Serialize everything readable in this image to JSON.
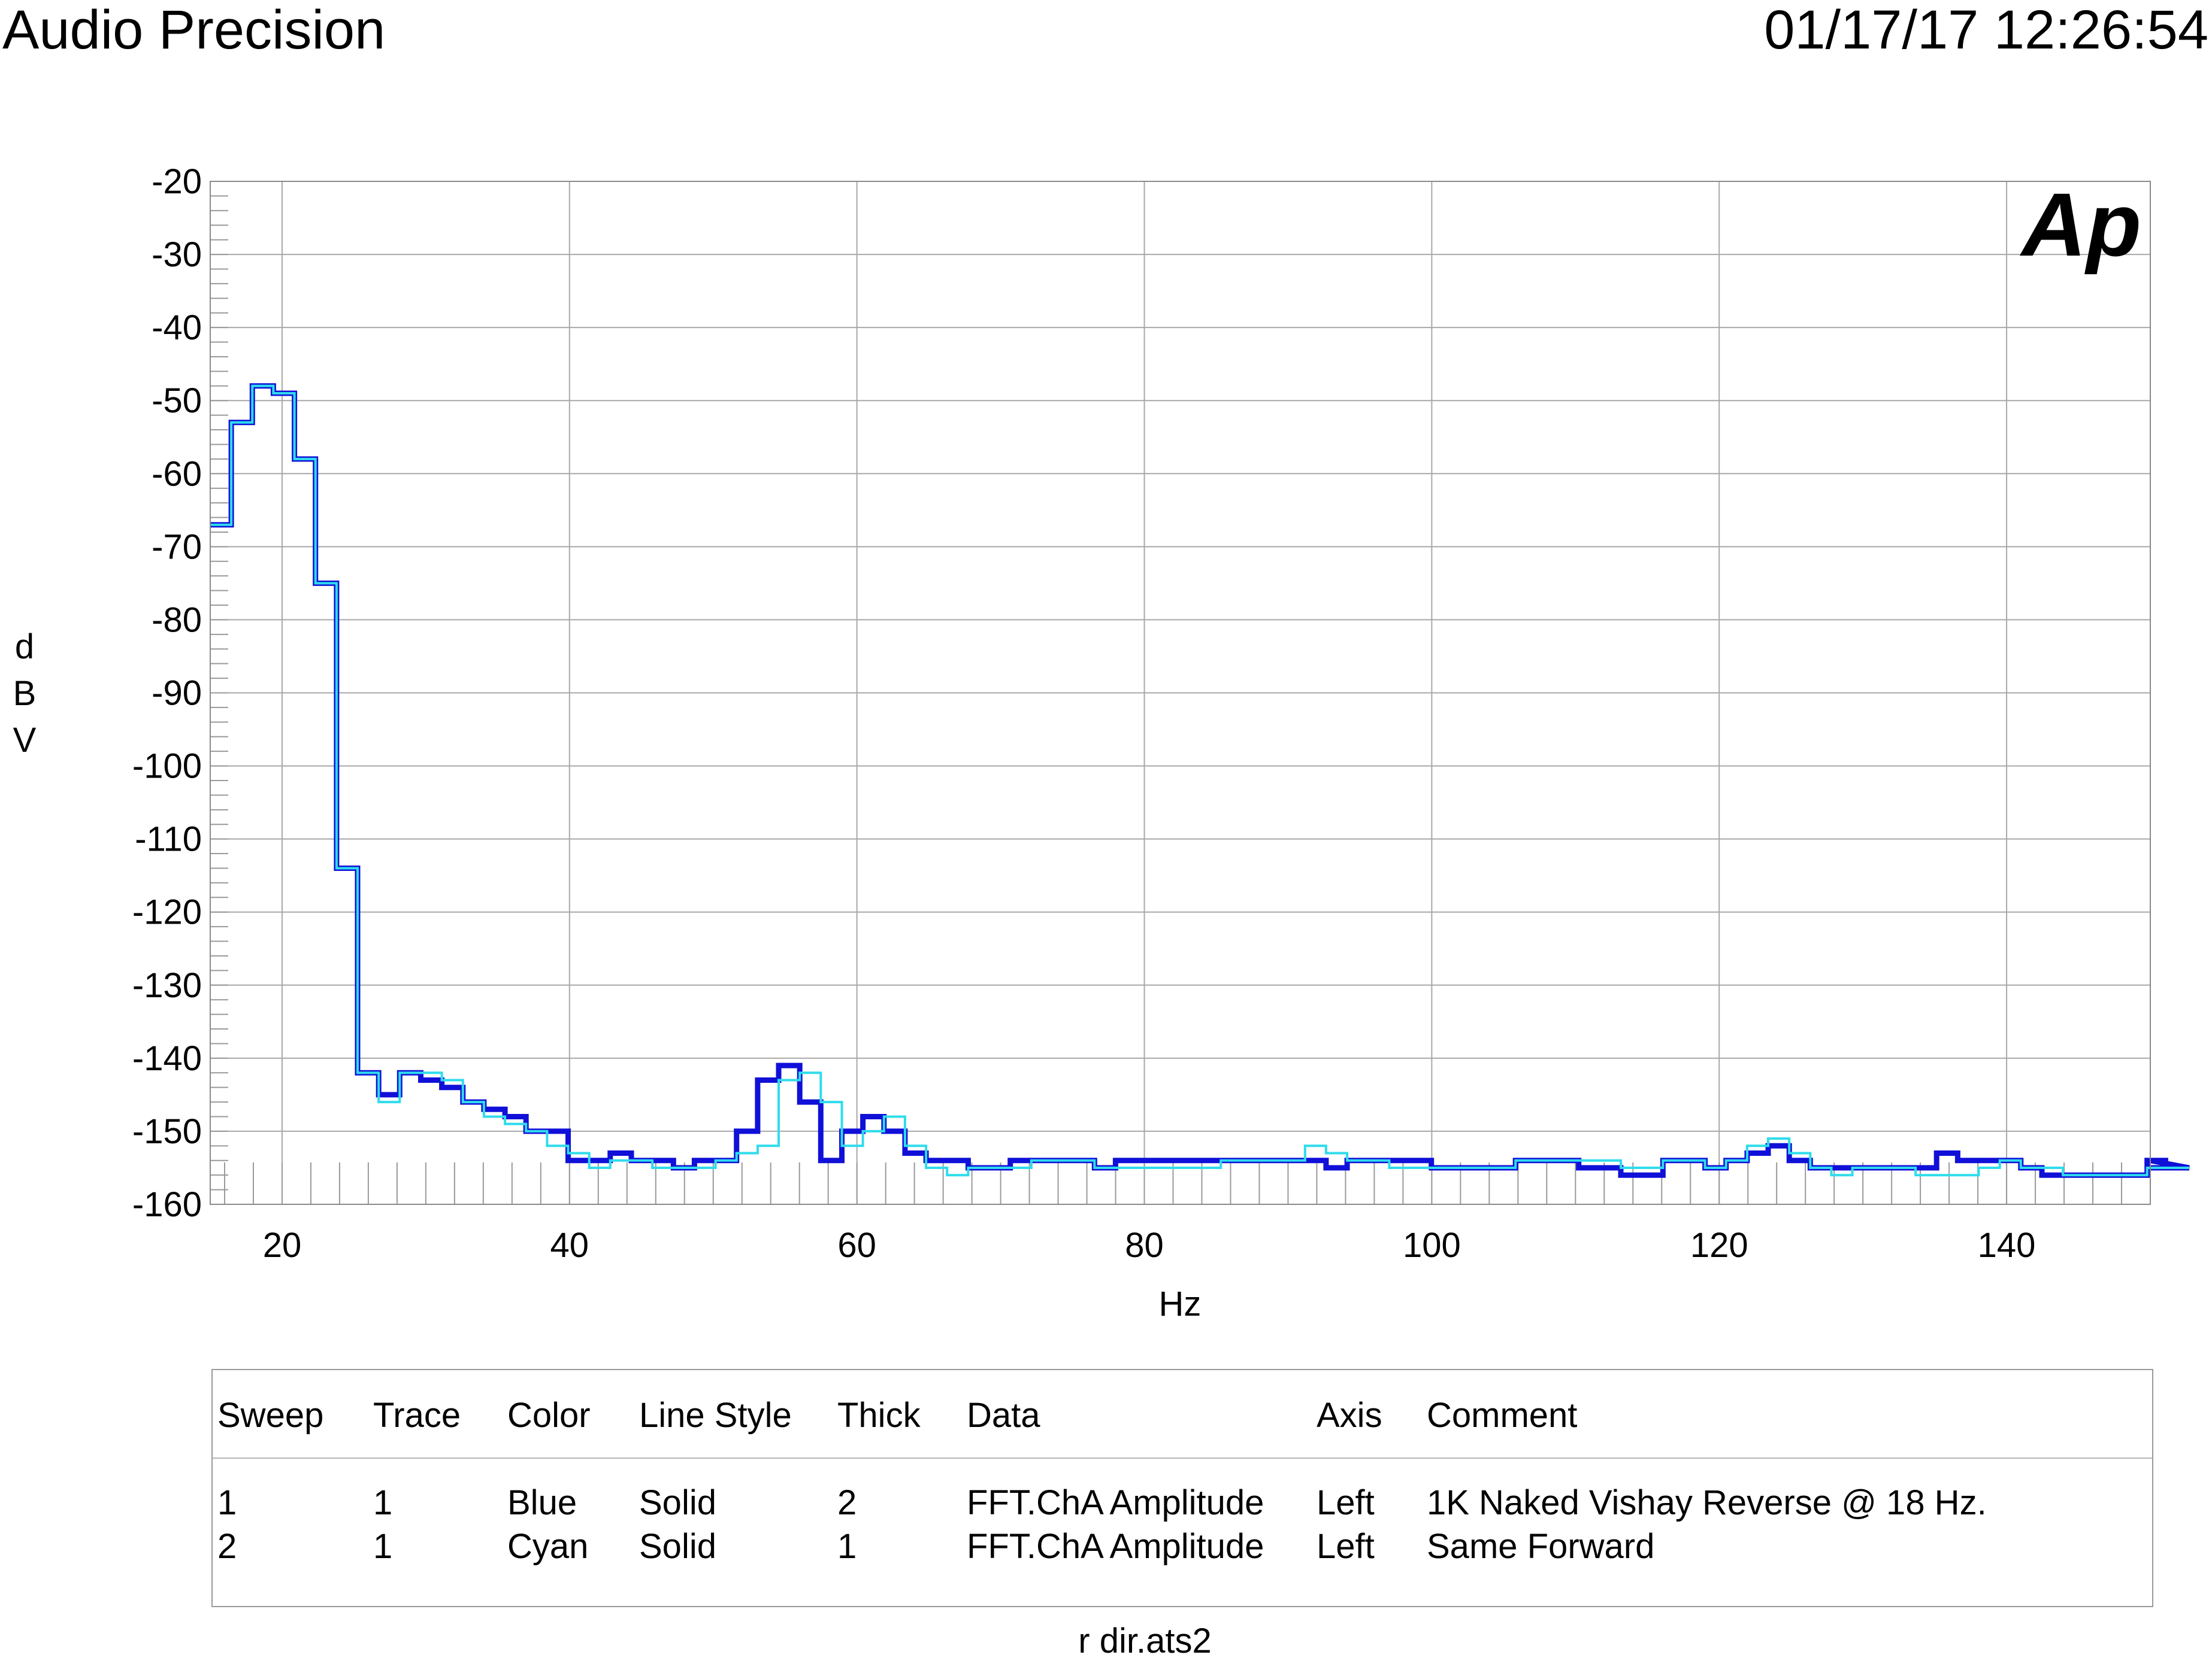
{
  "header": {
    "app_title": "Audio Precision",
    "datetime": "01/17/17 12:26:54"
  },
  "logo": {
    "text": "Ap",
    "color": "#1a1ae8"
  },
  "chart_data": {
    "type": "line",
    "xlabel": "Hz",
    "ylabel": "dBV",
    "xlim": [
      15,
      150
    ],
    "ylim": [
      -160,
      -20
    ],
    "x_ticks": [
      "20",
      "40",
      "60",
      "80",
      "100",
      "120",
      "140"
    ],
    "y_ticks": [
      "-20",
      "-30",
      "-40",
      "-50",
      "-60",
      "-70",
      "-80",
      "-90",
      "-100",
      "-110",
      "-120",
      "-130",
      "-140",
      "-150",
      "-160"
    ],
    "grid": true,
    "step": true,
    "bin_width_hz": 1.465,
    "series": [
      {
        "name": "1K Naked Vishay Reverse @ 18 Hz.",
        "color": "#1010d8",
        "values": [
          -67,
          -53,
          -48,
          -49,
          -58,
          -75,
          -114,
          -142,
          -145,
          -142,
          -143,
          -144,
          -146,
          -147,
          -148,
          -150,
          -150,
          -154,
          -154,
          -153,
          -154,
          -154,
          -155,
          -154,
          -154,
          -150,
          -143,
          -141,
          -146,
          -154,
          -150,
          -148,
          -150,
          -153,
          -154,
          -154,
          -155,
          -155,
          -154,
          -154,
          -154,
          -154,
          -155,
          -154,
          -154,
          -154,
          -154,
          -154,
          -154,
          -154,
          -154,
          -154,
          -154,
          -155,
          -154,
          -154,
          -154,
          -154,
          -155,
          -155,
          -155,
          -155,
          -154,
          -154,
          -154,
          -155,
          -155,
          -156,
          -156,
          -154,
          -154,
          -155,
          -154,
          -153,
          -152,
          -154,
          -155,
          -155,
          -155,
          -155,
          -155,
          -155,
          -153,
          -154,
          -154,
          -154,
          -155,
          -156,
          -156,
          -156,
          -156,
          -156,
          -154,
          -154,
          -155
        ]
      },
      {
        "name": "Same Forward",
        "color": "#2fdcec",
        "values": [
          -67,
          -53,
          -48,
          -49,
          -58,
          -75,
          -114,
          -142,
          -146,
          -142,
          -142,
          -143,
          -146,
          -148,
          -149,
          -150,
          -152,
          -153,
          -155,
          -154,
          -154,
          -155,
          -155,
          -155,
          -154,
          -153,
          -152,
          -143,
          -142,
          -146,
          -152,
          -150,
          -148,
          -152,
          -155,
          -156,
          -155,
          -155,
          -155,
          -154,
          -154,
          -154,
          -155,
          -155,
          -155,
          -155,
          -155,
          -155,
          -154,
          -154,
          -154,
          -154,
          -152,
          -153,
          -154,
          -154,
          -155,
          -155,
          -155,
          -155,
          -155,
          -155,
          -154,
          -154,
          -154,
          -154,
          -154,
          -155,
          -155,
          -154,
          -154,
          -155,
          -154,
          -152,
          -151,
          -153,
          -155,
          -156,
          -155,
          -155,
          -155,
          -156,
          -156,
          -156,
          -155,
          -154,
          -155,
          -155,
          -156,
          -156,
          -156,
          -156,
          -155,
          -155,
          -155
        ]
      }
    ]
  },
  "legend": {
    "headers": {
      "sweep": "Sweep",
      "trace": "Trace",
      "color": "Color",
      "line_style": "Line Style",
      "thick": "Thick",
      "data": "Data",
      "axis": "Axis",
      "comment": "Comment"
    },
    "rows": [
      {
        "sweep": "1",
        "trace": "1",
        "color": "Blue",
        "line_style": "Solid",
        "thick": "2",
        "data": "FFT.ChA Amplitude",
        "axis": "Left",
        "comment": "1K Naked Vishay Reverse @ 18 Hz."
      },
      {
        "sweep": "2",
        "trace": "1",
        "color": "Cyan",
        "line_style": "Solid",
        "thick": "1",
        "data": "FFT.ChA Amplitude",
        "axis": "Left",
        "comment": "Same Forward"
      }
    ]
  },
  "footer": {
    "filename": "r dir.ats2"
  }
}
